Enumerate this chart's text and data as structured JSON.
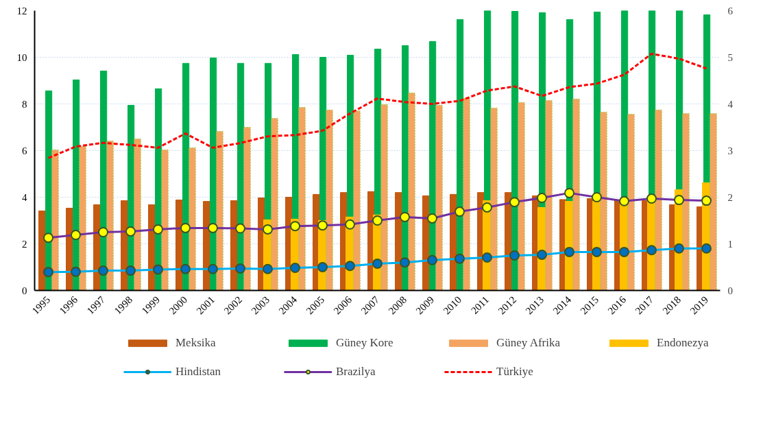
{
  "chart_data": {
    "type": "bar",
    "categories": [
      "1995",
      "1996",
      "1997",
      "1998",
      "1999",
      "2000",
      "2001",
      "2002",
      "2003",
      "2004",
      "2005",
      "2006",
      "2007",
      "2008",
      "2009",
      "2010",
      "2011",
      "2012",
      "2013",
      "2014",
      "2015",
      "2016",
      "2017",
      "2018",
      "2019"
    ],
    "series": [
      {
        "name": "Meksika",
        "color": "#c55a11",
        "values": [
          3.41,
          3.53,
          3.68,
          3.85,
          3.68,
          3.88,
          3.82,
          3.85,
          3.97,
          4.0,
          4.12,
          4.2,
          4.24,
          4.2,
          4.06,
          4.12,
          4.2,
          4.2,
          4.06,
          3.9,
          3.94,
          3.88,
          3.85,
          3.68,
          3.59
        ]
      },
      {
        "name": "Güney Kore",
        "color": "#00b050",
        "values": [
          8.56,
          9.03,
          9.41,
          7.94,
          8.65,
          9.74,
          9.97,
          9.74,
          9.74,
          10.12,
          10.0,
          10.09,
          10.35,
          10.5,
          10.68,
          11.62,
          12,
          11.97,
          11.91,
          11.62,
          11.94,
          12,
          12,
          12,
          11.82
        ]
      },
      {
        "name": "Endonezya",
        "color": "#ffc000",
        "values": [
          null,
          null,
          null,
          null,
          null,
          null,
          null,
          null,
          3.03,
          3.06,
          3.0,
          3.15,
          3.24,
          null,
          null,
          null,
          3.85,
          null,
          3.56,
          3.82,
          3.82,
          3.8,
          3.9,
          4.32,
          4.62
        ]
      },
      {
        "name": "Güney Afrika",
        "color": "#f4a460",
        "values": [
          6.03,
          6.18,
          6.41,
          6.5,
          6.03,
          6.12,
          6.82,
          7.0,
          7.38,
          7.85,
          7.74,
          7.7,
          7.97,
          8.47,
          7.94,
          8.24,
          7.82,
          8.06,
          8.15,
          8.21,
          7.65,
          7.56,
          7.74,
          7.59,
          7.59
        ]
      },
      {
        "name": "Hindistan",
        "type": "line",
        "color": "#00b0f0",
        "marker": "circle",
        "values": [
          0.79,
          0.8,
          0.85,
          0.85,
          0.9,
          0.92,
          0.92,
          0.94,
          0.92,
          0.97,
          1.0,
          1.05,
          1.15,
          1.2,
          1.3,
          1.36,
          1.41,
          1.5,
          1.53,
          1.65,
          1.65,
          1.65,
          1.73,
          1.8,
          1.8
        ]
      },
      {
        "name": "Brazilya",
        "type": "line",
        "color": "#7030a0",
        "marker": "circle",
        "values": [
          2.26,
          2.38,
          2.5,
          2.53,
          2.62,
          2.68,
          2.68,
          2.66,
          2.62,
          2.76,
          2.79,
          2.83,
          3.0,
          3.15,
          3.09,
          3.38,
          3.56,
          3.79,
          3.97,
          4.18,
          4.0,
          3.83,
          3.94,
          3.88,
          3.85
        ]
      },
      {
        "name": "Türkiye",
        "type": "line",
        "color": "#ff0000",
        "line_style": "dashed",
        "values": [
          5.68,
          6.17,
          6.33,
          6.24,
          6.12,
          6.73,
          6.12,
          6.32,
          6.61,
          6.66,
          6.85,
          7.59,
          8.23,
          8.08,
          8.0,
          8.13,
          8.57,
          8.75,
          8.34,
          8.72,
          8.87,
          9.25,
          10.15,
          9.94,
          9.52
        ]
      }
    ],
    "ylim": [
      0,
      12
    ],
    "yticks": [
      0,
      2,
      4,
      6,
      8,
      10,
      12
    ],
    "y2lim": [
      0,
      6
    ],
    "y2ticks": [
      0,
      1,
      2,
      3,
      4,
      5,
      6
    ],
    "grid": "y",
    "legend": "bottom"
  }
}
